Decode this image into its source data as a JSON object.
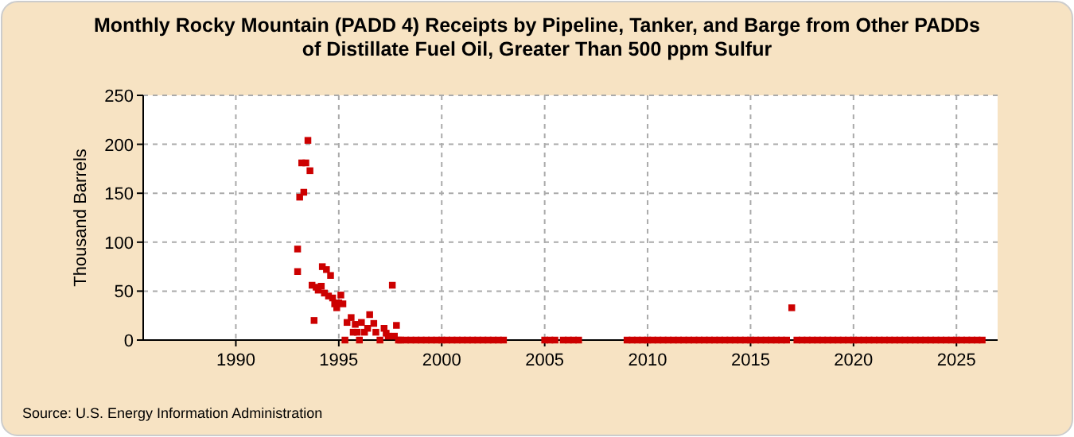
{
  "chart_data": {
    "type": "scatter",
    "title": "Monthly Rocky Mountain (PADD 4) Receipts by Pipeline, Tanker, and Barge from Other PADDs of Distillate Fuel Oil, Greater Than 500 ppm Sulfur",
    "ylabel": "Thousand Barrels",
    "annotations": [
      "Source: U.S. Energy Information Administration"
    ],
    "x": [
      1993.0,
      1993.0,
      1993.1,
      1993.3,
      1993.2,
      1993.4,
      1993.5,
      1993.6,
      1993.7,
      1993.8,
      1993.9,
      1994.0,
      1994.15,
      1994.2,
      1994.4,
      1994.3,
      1994.5,
      1994.6,
      1994.7,
      1994.8,
      1994.9,
      1995.0,
      1995.1,
      1995.2,
      1995.3,
      1995.4,
      1995.6,
      1995.7,
      1995.8,
      1995.9,
      1996.0,
      1996.1,
      1996.25,
      1996.4,
      1996.5,
      1996.7,
      1996.8,
      1997.0,
      1997.2,
      1997.3,
      1997.4,
      1997.6,
      1997.7,
      1997.8,
      1997.9,
      1998,
      1998.25,
      1998.5,
      1998.75,
      1999,
      1999.25,
      1999.5,
      1999.75,
      2000,
      2000.25,
      2000.5,
      2000.75,
      2001,
      2001.25,
      2001.5,
      2001.75,
      2002,
      2002.25,
      2002.5,
      2002.75,
      2003,
      2005,
      2005.25,
      2005.5,
      2005.9,
      2006.15,
      2006.4,
      2006.65,
      2009,
      2009.25,
      2009.5,
      2009.75,
      2010,
      2010.25,
      2010.5,
      2010.75,
      2011,
      2011.25,
      2011.5,
      2011.75,
      2012,
      2012.25,
      2012.5,
      2012.75,
      2013,
      2013.25,
      2013.5,
      2013.75,
      2014,
      2014.25,
      2014.5,
      2014.75,
      2015,
      2015.25,
      2015.5,
      2015.75,
      2016,
      2016.25,
      2016.5,
      2016.75,
      2017,
      2017.25,
      2017.5,
      2017.75,
      2018,
      2018.25,
      2018.5,
      2018.75,
      2019,
      2019.25,
      2019.5,
      2019.75,
      2020,
      2020.25,
      2020.5,
      2020.75,
      2021,
      2021.25,
      2021.5,
      2021.75,
      2022,
      2022.25,
      2022.5,
      2022.75,
      2023,
      2023.25,
      2023.5,
      2023.75,
      2024,
      2024.25,
      2024.5,
      2024.75,
      2025,
      2025.25,
      2025.5,
      2025.75,
      2026,
      2026.25
    ],
    "values": [
      70,
      93,
      146,
      151,
      181,
      181,
      204,
      173,
      56,
      20,
      54,
      51,
      55,
      75,
      72,
      48,
      45,
      66,
      43,
      37,
      33,
      38,
      46,
      37,
      0,
      18,
      23,
      8,
      16,
      8,
      0,
      18,
      8,
      12,
      26,
      17,
      8,
      0,
      12,
      7,
      4,
      56,
      4,
      15,
      0,
      0,
      0,
      0,
      0,
      0,
      0,
      0,
      0,
      0,
      0,
      0,
      0,
      0,
      0,
      0,
      0,
      0,
      0,
      0,
      0,
      0,
      0,
      0,
      0,
      0,
      0,
      0,
      0,
      0,
      0,
      0,
      0,
      0,
      0,
      0,
      0,
      0,
      0,
      0,
      0,
      0,
      0,
      0,
      0,
      0,
      0,
      0,
      0,
      0,
      0,
      0,
      0,
      0,
      0,
      0,
      0,
      0,
      0,
      0,
      0,
      33,
      0,
      0,
      0,
      0,
      0,
      0,
      0,
      0,
      0,
      0,
      0,
      0,
      0,
      0,
      0,
      0,
      0,
      0,
      0,
      0,
      0,
      0,
      0,
      0,
      0,
      0,
      0,
      0,
      0,
      0,
      0,
      0,
      0,
      0,
      0,
      0,
      0
    ],
    "color": "#cc0000",
    "marker": "square",
    "xlim": [
      1985.5,
      2027
    ],
    "xticks": [
      1990,
      1995,
      2000,
      2005,
      2010,
      2015,
      2020,
      2025
    ],
    "ylim": [
      0,
      250
    ],
    "yticks": [
      0,
      50,
      100,
      150,
      200,
      250
    ],
    "grid": true
  }
}
